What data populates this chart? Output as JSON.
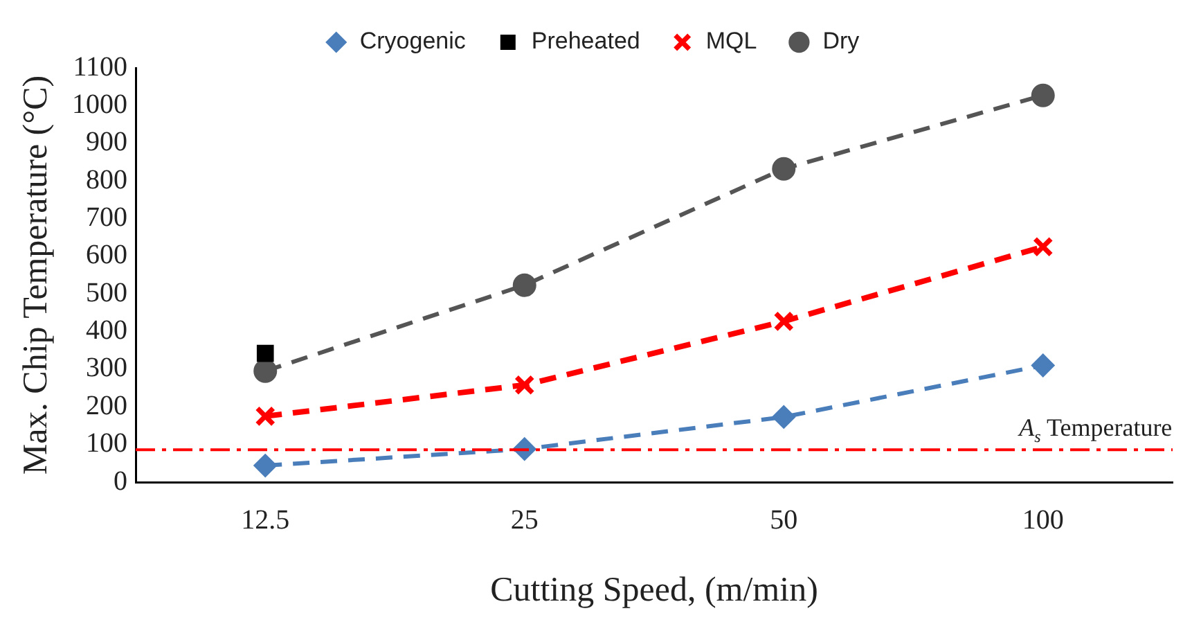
{
  "chart_data": {
    "type": "line",
    "xlabel": "Cutting Speed, (m/min)",
    "ylabel": "Max. Chip Temperature (°C)",
    "categories": [
      "12.5",
      "25",
      "50",
      "100"
    ],
    "ylim": [
      0,
      1100
    ],
    "yticks": [
      0,
      100,
      200,
      300,
      400,
      500,
      600,
      700,
      800,
      900,
      1000,
      1100
    ],
    "grid": false,
    "legend": "top",
    "series": [
      {
        "name": "Cryogenic",
        "color": "#4a7ebb",
        "values": [
          44,
          88,
          173,
          310
        ],
        "marker": "diamond",
        "line_style": "dashed"
      },
      {
        "name": "Preheated",
        "color": "#000000",
        "values": [
          342,
          null,
          null,
          null
        ],
        "marker": "square",
        "line_style": "solid"
      },
      {
        "name": "MQL",
        "color": "#ff0000",
        "values": [
          175,
          258,
          427,
          625
        ],
        "marker": "cross",
        "line_style": "dashed"
      },
      {
        "name": "Dry",
        "color": "#555555",
        "values": [
          295,
          523,
          832,
          1027
        ],
        "marker": "circle",
        "line_style": "dashed"
      }
    ],
    "ref_lines": [
      {
        "axis": "y",
        "value": 86,
        "label": "A$_{s}$ Temperature",
        "color": "#ff0000",
        "line_style": "dashdot"
      }
    ]
  }
}
